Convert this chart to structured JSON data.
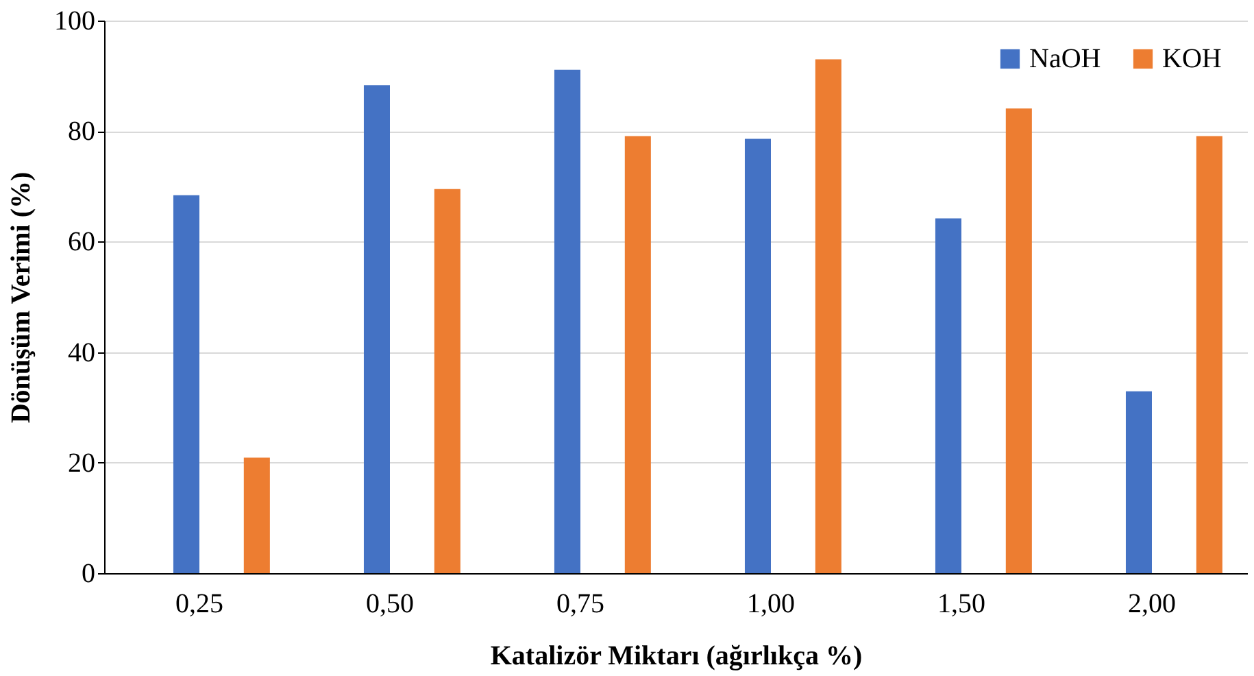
{
  "chart_data": {
    "type": "bar",
    "xlabel": "Katalizör Miktarı (ağırlıkça %)",
    "ylabel": "Dönüşüm Verimi (%)",
    "categories": [
      "0,25",
      "0,50",
      "0,75",
      "1,00",
      "1,50",
      "2,00"
    ],
    "series": [
      {
        "name": "NaOH",
        "color": "#4472c4",
        "values": [
          68.4,
          88.3,
          91.1,
          78.6,
          64.2,
          32.9
        ]
      },
      {
        "name": "KOH",
        "color": "#ed7d31",
        "values": [
          20.9,
          69.5,
          79.1,
          93.0,
          84.1,
          79.1
        ]
      }
    ],
    "ylim": [
      0,
      100
    ],
    "yticks": [
      0,
      20,
      40,
      60,
      80,
      100
    ],
    "grid": "y",
    "legend": "top right"
  }
}
